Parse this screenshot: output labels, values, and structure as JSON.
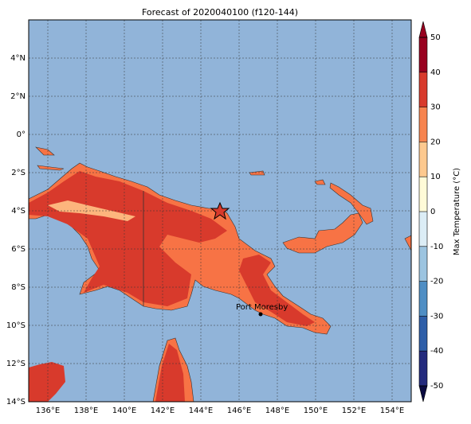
{
  "title": "Forecast of 2020040100 (f120-144)",
  "map": {
    "lat_labels": [
      "4°N",
      "2°N",
      "0°",
      "2°S",
      "4°S",
      "6°S",
      "8°S",
      "10°S",
      "12°S",
      "14°S"
    ],
    "lon_labels": [
      "136°E",
      "138°E",
      "140°E",
      "142°E",
      "144°E",
      "146°E",
      "148°E",
      "150°E",
      "152°E",
      "154°E"
    ],
    "annotation": "Port Moresby"
  },
  "colorbar": {
    "label": "Max Temperature (°C)",
    "lim": [
      -50,
      50
    ],
    "ticks": [
      -50,
      -40,
      -30,
      -20,
      -10,
      0,
      10,
      20,
      30,
      40,
      50
    ],
    "colors": [
      "#232a7d",
      "#2e5ea8",
      "#4f8ec4",
      "#9cc4e0",
      "#dcedf6",
      "#fffbd8",
      "#fdc98f",
      "#f7844f",
      "#d83a2c",
      "#98001f"
    ]
  }
}
